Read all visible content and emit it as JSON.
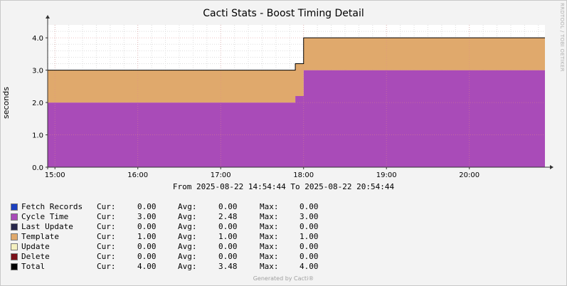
{
  "title": "Cacti Stats - Boost Timing Detail",
  "watermark": "RRDTOOL / TOBI OETIKER",
  "period": "From 2025-08-22 14:54:44 To 2025-08-22 20:54:44",
  "footer": "Generated by Cacti®",
  "chart_data": {
    "type": "area",
    "title": "Cacti Stats - Boost Timing Detail",
    "xlabel": "",
    "ylabel": "seconds",
    "x_ticks": [
      "15:00",
      "16:00",
      "17:00",
      "18:00",
      "19:00",
      "20:00"
    ],
    "y_ticks": [
      "0.0",
      "1.0",
      "2.0",
      "3.0",
      "4.0"
    ],
    "ylim": [
      0,
      4.4
    ],
    "x_range": [
      "14:54:44",
      "20:54:44"
    ],
    "grid": true,
    "stacked": true,
    "series": [
      {
        "name": "Cycle Time",
        "color": "#a94bb8",
        "points": [
          [
            "14:54:44",
            2.0
          ],
          [
            "17:54:00",
            2.0
          ],
          [
            "17:54:00",
            2.2
          ],
          [
            "18:00:00",
            2.2
          ],
          [
            "18:00:00",
            3.0
          ],
          [
            "20:54:44",
            3.0
          ]
        ]
      },
      {
        "name": "Template",
        "color": "#e0a96c",
        "points": [
          [
            "14:54:44",
            1.0
          ],
          [
            "17:54:00",
            1.0
          ],
          [
            "18:00:00",
            1.0
          ],
          [
            "20:54:44",
            1.0
          ]
        ]
      },
      {
        "name": "Total",
        "color": "#000000",
        "line": true,
        "points": [
          [
            "14:54:44",
            3.0
          ],
          [
            "17:54:00",
            3.0
          ],
          [
            "17:54:00",
            3.2
          ],
          [
            "18:00:00",
            3.2
          ],
          [
            "18:00:00",
            4.0
          ],
          [
            "20:54:44",
            4.0
          ]
        ]
      }
    ]
  },
  "legend": {
    "labels": {
      "cur": "Cur:",
      "avg": "Avg:",
      "max": "Max:"
    },
    "items": [
      {
        "name": "Fetch Records",
        "color": "#1b3fbf",
        "cur": "0.00",
        "avg": "0.00",
        "max": "0.00"
      },
      {
        "name": "Cycle Time",
        "color": "#a94bb8",
        "cur": "3.00",
        "avg": "2.48",
        "max": "3.00"
      },
      {
        "name": "Last Update",
        "color": "#26264a",
        "cur": "0.00",
        "avg": "0.00",
        "max": "0.00"
      },
      {
        "name": "Template",
        "color": "#e0a96c",
        "cur": "1.00",
        "avg": "1.00",
        "max": "1.00"
      },
      {
        "name": "Update",
        "color": "#f4f0c0",
        "cur": "0.00",
        "avg": "0.00",
        "max": "0.00"
      },
      {
        "name": "Delete",
        "color": "#7a1019",
        "cur": "0.00",
        "avg": "0.00",
        "max": "0.00"
      },
      {
        "name": "Total",
        "color": "#000000",
        "cur": "4.00",
        "avg": "3.48",
        "max": "4.00"
      }
    ]
  }
}
